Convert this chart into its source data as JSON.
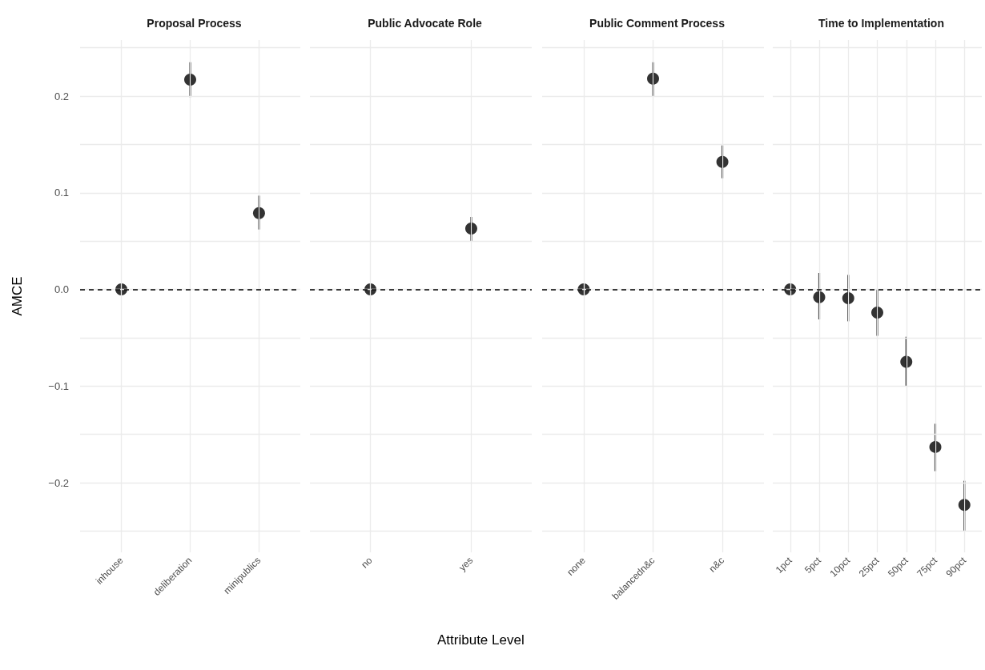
{
  "chart_data": [
    {
      "type": "scatter",
      "title": "Proposal Process",
      "ylabel": "AMCE",
      "categories": [
        "inhouse",
        "deliberation",
        "minipublics"
      ],
      "values": [
        0,
        0.217,
        0.079
      ],
      "errors": [
        null,
        [
          0.199,
          0.235
        ],
        [
          0.062,
          0.097
        ]
      ],
      "color": "#000000",
      "marker": "circle",
      "grid": true,
      "ylim": [
        -0.272,
        0.258
      ],
      "yticks": [
        {
          "value": -0.25,
          "label": null
        },
        {
          "value": -0.2,
          "label": "−0.2"
        },
        {
          "value": -0.15,
          "label": null
        },
        {
          "value": -0.1,
          "label": "−0.1"
        },
        {
          "value": -0.05,
          "label": null
        },
        {
          "value": 0,
          "label": "0.0"
        },
        {
          "value": 0.05,
          "label": null
        },
        0.1,
        {
          "value": 0.15,
          "label": null
        },
        0.2,
        {
          "value": 0.25,
          "label": null
        }
      ],
      "ref_lines": [
        {
          "axis": "y",
          "value": 0,
          "line_style": "dashed"
        }
      ]
    },
    {
      "type": "scatter",
      "title": "Public Advocate Role",
      "xlabel": "Attribute Level",
      "categories": [
        "no",
        "yes"
      ],
      "values": [
        0,
        0.063
      ],
      "errors": [
        null,
        [
          0.05,
          0.075
        ]
      ],
      "color": "#000000",
      "marker": "circle",
      "grid": true,
      "tick_labels": "x",
      "ylim": [
        -0.272,
        0.258
      ],
      "yticks": [
        -0.25,
        -0.2,
        -0.15,
        -0.1,
        -0.05,
        0,
        0.05,
        0.1,
        0.15,
        0.2,
        0.25
      ],
      "ref_lines": [
        {
          "axis": "y",
          "value": 0,
          "line_style": "dashed"
        }
      ]
    },
    {
      "type": "scatter",
      "title": "Public Comment Process",
      "categories": [
        "none",
        "balancedn&c",
        "n&c"
      ],
      "values": [
        0,
        0.218,
        0.132
      ],
      "errors": [
        null,
        [
          0.2,
          0.235
        ],
        [
          0.115,
          0.149
        ]
      ],
      "color": "#000000",
      "marker": "circle",
      "grid": true,
      "tick_labels": "x",
      "ylim": [
        -0.272,
        0.258
      ],
      "yticks": [
        -0.25,
        -0.2,
        -0.15,
        -0.1,
        -0.05,
        0,
        0.05,
        0.1,
        0.15,
        0.2,
        0.25
      ],
      "ref_lines": [
        {
          "axis": "y",
          "value": 0,
          "line_style": "dashed"
        }
      ]
    },
    {
      "type": "scatter",
      "title": "Time to Implementation",
      "categories": [
        "1pct",
        "5pct",
        "10pct",
        "25pct",
        "50pct",
        "75pct",
        "90pct"
      ],
      "values": [
        0,
        -0.008,
        -0.009,
        -0.024,
        -0.075,
        -0.163,
        -0.223
      ],
      "errors": [
        null,
        [
          -0.031,
          0.017
        ],
        [
          -0.033,
          0.015
        ],
        [
          -0.048,
          0
        ],
        [
          -0.1,
          -0.049
        ],
        [
          -0.188,
          -0.139
        ],
        [
          -0.25,
          -0.198
        ]
      ],
      "color": "#000000",
      "marker": "circle",
      "grid": true,
      "tick_labels": "x",
      "ylim": [
        -0.272,
        0.258
      ],
      "yticks": [
        -0.25,
        -0.2,
        -0.15,
        -0.1,
        -0.05,
        0,
        0.05,
        0.1,
        0.15,
        0.2,
        0.25
      ],
      "ref_lines": [
        {
          "axis": "y",
          "value": 0,
          "line_style": "dashed"
        }
      ]
    }
  ]
}
